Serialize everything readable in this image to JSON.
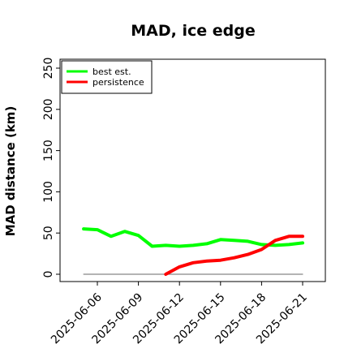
{
  "chart_data": {
    "type": "line",
    "title": "MAD, ice edge",
    "xlabel": "",
    "ylabel": "MAD distance (km)",
    "ylim": [
      0,
      260
    ],
    "xlim": [
      "2025-06-03",
      "2025-06-21"
    ],
    "grid": false,
    "legend_position": "top-left",
    "x_tick_labels": [
      "2025-06-06",
      "2025-06-09",
      "2025-06-12",
      "2025-06-15",
      "2025-06-18",
      "2025-06-21"
    ],
    "y_tick_labels": [
      "0",
      "50",
      "100",
      "150",
      "200",
      "250"
    ],
    "y_ticks": [
      0,
      50,
      100,
      150,
      200,
      250
    ],
    "series": [
      {
        "name": "best est.",
        "color": "#00ff00",
        "x": [
          "2025-06-05",
          "2025-06-06",
          "2025-06-07",
          "2025-06-08",
          "2025-06-09",
          "2025-06-10",
          "2025-06-11",
          "2025-06-12",
          "2025-06-13",
          "2025-06-14",
          "2025-06-15",
          "2025-06-16",
          "2025-06-17",
          "2025-06-18",
          "2025-06-19",
          "2025-06-20",
          "2025-06-21"
        ],
        "values": [
          55,
          54,
          46,
          52,
          47,
          34,
          35,
          34,
          35,
          37,
          42,
          41,
          40,
          36,
          35,
          36,
          38
        ]
      },
      {
        "name": "persistence",
        "color": "#ff0000",
        "x": [
          "2025-06-11",
          "2025-06-12",
          "2025-06-13",
          "2025-06-14",
          "2025-06-15",
          "2025-06-16",
          "2025-06-17",
          "2025-06-18",
          "2025-06-19",
          "2025-06-20",
          "2025-06-21"
        ],
        "values": [
          0,
          9,
          14,
          16,
          17,
          20,
          24,
          30,
          41,
          46,
          46
        ]
      },
      {
        "name": "",
        "color": "#888888",
        "x": [
          "2025-06-05",
          "2025-06-21"
        ],
        "values": [
          0,
          0
        ]
      }
    ]
  }
}
